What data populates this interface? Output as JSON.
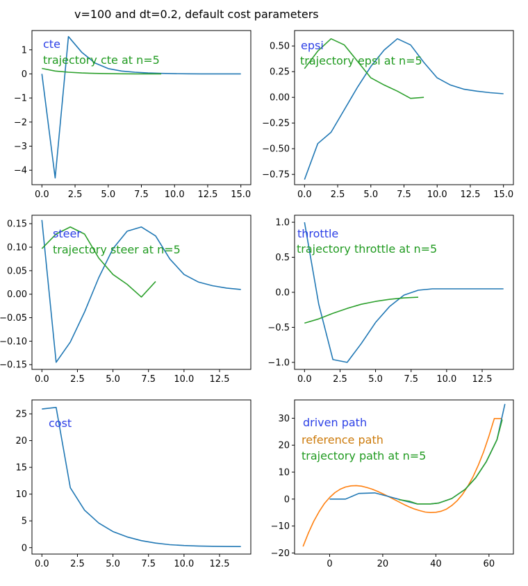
{
  "suptitle": "v=100 and dt=0.2, default cost parameters",
  "colors": {
    "blue": "#1f77b4",
    "green": "#2ca02c",
    "orange": "#ff7f0e",
    "label_blue": "#2b3fe6",
    "label_green": "#1f9a1f",
    "label_orange": "#cc7a0a"
  },
  "chart_data": [
    {
      "type": "line",
      "xlim": [
        -0.75,
        15.75
      ],
      "ylim": [
        -4.6,
        1.8
      ],
      "xticks": [
        0,
        2.5,
        5,
        7.5,
        10,
        12.5,
        15
      ],
      "xticklabels": [
        "0.0",
        "2.5",
        "5.0",
        "7.5",
        "10.0",
        "12.5",
        "15.0"
      ],
      "yticks": [
        1,
        0,
        -1,
        -2,
        -3,
        -4
      ],
      "yticklabels": [
        "1",
        "0",
        "−1",
        "−2",
        "−3",
        "−4"
      ],
      "annotations": [
        {
          "text": "cte",
          "color": "label_blue"
        },
        {
          "text": "trajectory cte at n=5",
          "color": "label_green"
        }
      ],
      "series": [
        {
          "color": "blue",
          "x": [
            0,
            1,
            2,
            3,
            4,
            5,
            6,
            7,
            8,
            9,
            10,
            11,
            12,
            13,
            14,
            15
          ],
          "y": [
            0.0,
            -4.32,
            1.55,
            0.9,
            0.45,
            0.22,
            0.12,
            0.07,
            0.04,
            0.02,
            0.01,
            0.005,
            0.0,
            0.0,
            0.0,
            0.0
          ]
        },
        {
          "color": "green",
          "x": [
            0,
            1,
            2,
            3,
            4,
            5,
            6,
            7,
            8,
            9
          ],
          "y": [
            0.23,
            0.12,
            0.07,
            0.04,
            0.02,
            0.01,
            0.005,
            0.0,
            0.0,
            0.0
          ]
        }
      ]
    },
    {
      "type": "line",
      "xlim": [
        -0.75,
        15.75
      ],
      "ylim": [
        -0.85,
        0.65
      ],
      "xticks": [
        0,
        2.5,
        5,
        7.5,
        10,
        12.5,
        15
      ],
      "xticklabels": [
        "0.0",
        "2.5",
        "5.0",
        "7.5",
        "10.0",
        "12.5",
        "15.0"
      ],
      "yticks": [
        0.5,
        0.25,
        0,
        -0.25,
        -0.5,
        -0.75
      ],
      "yticklabels": [
        "0.50",
        "0.25",
        "0.00",
        "−0.25",
        "−0.50",
        "−0.75"
      ],
      "annotations": [
        {
          "text": "epsi",
          "color": "label_blue"
        },
        {
          "text": "trajectory epsi at n=5",
          "color": "label_green"
        }
      ],
      "series": [
        {
          "color": "blue",
          "x": [
            0,
            1,
            2,
            3,
            4,
            5,
            6,
            7,
            8,
            9,
            10,
            11,
            12,
            13,
            14,
            15
          ],
          "y": [
            -0.8,
            -0.45,
            -0.34,
            -0.12,
            0.1,
            0.3,
            0.46,
            0.57,
            0.51,
            0.34,
            0.19,
            0.12,
            0.08,
            0.06,
            0.045,
            0.035
          ]
        },
        {
          "color": "green",
          "x": [
            0,
            1,
            2,
            3,
            4,
            5,
            6,
            7,
            8,
            9
          ],
          "y": [
            0.28,
            0.45,
            0.57,
            0.51,
            0.35,
            0.19,
            0.12,
            0.06,
            -0.01,
            0.0
          ]
        }
      ]
    },
    {
      "type": "line",
      "xlim": [
        -0.7,
        14.7
      ],
      "ylim": [
        -0.16,
        0.168
      ],
      "xticks": [
        0,
        2.5,
        5,
        7.5,
        10,
        12.5
      ],
      "xticklabels": [
        "0.0",
        "2.5",
        "5.0",
        "7.5",
        "10.0",
        "12.5"
      ],
      "yticks": [
        0.15,
        0.1,
        0.05,
        0,
        -0.05,
        -0.1,
        -0.15
      ],
      "yticklabels": [
        "0.15",
        "0.10",
        "0.05",
        "0.00",
        "−0.05",
        "−0.10",
        "−0.15"
      ],
      "annotations": [
        {
          "text": "steer",
          "color": "label_blue"
        },
        {
          "text": "trajectory steer at n=5",
          "color": "label_green"
        }
      ],
      "series": [
        {
          "color": "blue",
          "x": [
            0,
            1,
            2,
            3,
            4,
            5,
            6,
            7,
            8,
            9,
            10,
            11,
            12,
            13,
            14
          ],
          "y": [
            0.158,
            -0.145,
            -0.102,
            -0.038,
            0.035,
            0.097,
            0.134,
            0.143,
            0.124,
            0.075,
            0.042,
            0.026,
            0.018,
            0.013,
            0.01
          ]
        },
        {
          "color": "green",
          "x": [
            0,
            1,
            2,
            3,
            4,
            5,
            6,
            7,
            8
          ],
          "y": [
            0.097,
            0.128,
            0.143,
            0.128,
            0.077,
            0.042,
            0.021,
            -0.006,
            0.027
          ]
        }
      ]
    },
    {
      "type": "line",
      "xlim": [
        -0.7,
        14.7
      ],
      "ylim": [
        -1.1,
        1.1
      ],
      "xticks": [
        0,
        2.5,
        5,
        7.5,
        10,
        12.5
      ],
      "xticklabels": [
        "0.0",
        "2.5",
        "5.0",
        "7.5",
        "10.0",
        "12.5"
      ],
      "yticks": [
        1,
        0.5,
        0,
        -0.5,
        -1
      ],
      "yticklabels": [
        "1.0",
        "0.5",
        "0.0",
        "−0.5",
        "−1.0"
      ],
      "annotations": [
        {
          "text": "throttle",
          "color": "label_blue"
        },
        {
          "text": "trajectory throttle at n=5",
          "color": "label_green"
        }
      ],
      "series": [
        {
          "color": "blue",
          "x": [
            0,
            1,
            2,
            3,
            4,
            5,
            6,
            7,
            8,
            9,
            10,
            11,
            12,
            13,
            14
          ],
          "y": [
            1.0,
            -0.17,
            -0.96,
            -1.0,
            -0.73,
            -0.43,
            -0.2,
            -0.04,
            0.03,
            0.05,
            0.05,
            0.05,
            0.05,
            0.05,
            0.05
          ]
        },
        {
          "color": "green",
          "x": [
            0,
            1,
            2,
            3,
            4,
            5,
            6,
            7,
            8
          ],
          "y": [
            -0.44,
            -0.38,
            -0.3,
            -0.23,
            -0.17,
            -0.13,
            -0.1,
            -0.08,
            -0.07
          ]
        }
      ]
    },
    {
      "type": "line",
      "xlim": [
        -0.7,
        14.7
      ],
      "ylim": [
        -1.2,
        27.6
      ],
      "xticks": [
        0,
        2.5,
        5,
        7.5,
        10,
        12.5
      ],
      "xticklabels": [
        "0.0",
        "2.5",
        "5.0",
        "7.5",
        "10.0",
        "12.5"
      ],
      "yticks": [
        25,
        20,
        15,
        10,
        5,
        0
      ],
      "yticklabels": [
        "25",
        "20",
        "15",
        "10",
        "5",
        "0"
      ],
      "annotations": [
        {
          "text": "cost",
          "color": "label_blue"
        }
      ],
      "series": [
        {
          "color": "blue",
          "x": [
            0,
            1,
            2,
            3,
            4,
            5,
            6,
            7,
            8,
            9,
            10,
            11,
            12,
            13,
            14
          ],
          "y": [
            25.9,
            26.2,
            11.2,
            7.0,
            4.6,
            3.0,
            2.0,
            1.3,
            0.85,
            0.55,
            0.4,
            0.3,
            0.25,
            0.22,
            0.2
          ]
        }
      ]
    },
    {
      "type": "line",
      "xlim": [
        -13.2,
        69.2
      ],
      "ylim": [
        -20.4,
        36.8
      ],
      "xticks": [
        0,
        20,
        40,
        60
      ],
      "xticklabels": [
        "0",
        "20",
        "40",
        "60"
      ],
      "yticks": [
        30,
        20,
        10,
        0,
        -10,
        -20
      ],
      "yticklabels": [
        "30",
        "20",
        "10",
        "0",
        "−10",
        "−20"
      ],
      "annotations": [
        {
          "text": "driven path",
          "color": "label_blue"
        },
        {
          "text": "reference path",
          "color": "label_orange"
        },
        {
          "text": "trajectory path at n=5",
          "color": "label_green"
        }
      ],
      "series": [
        {
          "color": "orange",
          "x": [
            -10,
            -8,
            -6,
            -4,
            -2,
            0,
            2,
            4,
            6,
            8,
            10,
            12,
            14,
            16,
            18,
            20,
            22,
            24,
            26,
            28,
            30,
            32,
            34,
            36,
            38,
            40,
            42,
            44,
            46,
            48,
            50,
            52,
            54,
            56,
            58,
            60,
            62,
            64,
            65
          ],
          "y": [
            -17.6,
            -12.6,
            -8.3,
            -4.7,
            -1.7,
            0.6,
            2.4,
            3.7,
            4.5,
            4.9,
            5.0,
            4.8,
            4.3,
            3.7,
            2.9,
            2.0,
            1.0,
            0.0,
            -1.0,
            -2.0,
            -2.9,
            -3.7,
            -4.3,
            -4.8,
            -5.0,
            -4.9,
            -4.5,
            -3.7,
            -2.4,
            -0.6,
            1.7,
            4.7,
            8.3,
            12.6,
            17.6,
            23.4,
            29.9,
            29.9,
            29.9
          ]
        },
        {
          "color": "blue",
          "x": [
            0,
            6,
            11,
            17,
            22,
            28,
            33,
            38,
            41,
            46,
            51,
            55,
            59,
            63,
            66
          ],
          "y": [
            0.0,
            0.0,
            2.1,
            2.3,
            1.0,
            -0.6,
            -1.8,
            -1.8,
            -1.5,
            0.2,
            3.6,
            7.9,
            13.9,
            22.0,
            35.3
          ]
        },
        {
          "color": "green",
          "x": [
            26,
            30,
            33,
            38,
            41,
            46,
            51,
            55,
            59,
            63,
            65
          ],
          "y": [
            -0.2,
            -0.8,
            -1.8,
            -1.8,
            -1.5,
            0.2,
            3.6,
            7.9,
            13.9,
            22.0,
            29.5
          ]
        }
      ]
    }
  ]
}
